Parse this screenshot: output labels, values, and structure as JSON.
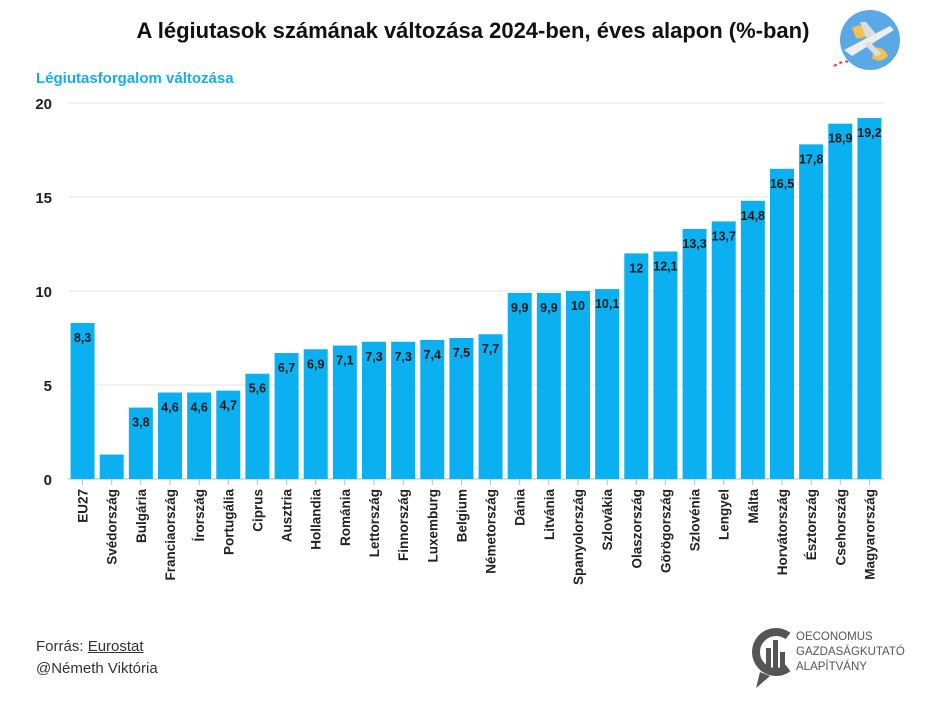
{
  "title": "A légiutasok számának változása 2024-ben, éves alapon (%-ban)",
  "source": {
    "label": "Forrás: ",
    "link": "Eurostat",
    "author": "@Németh Viktória"
  },
  "logo": {
    "line1": "OECONOMUS",
    "line2": "GAZDASÁGKUTATÓ",
    "line3": "ALAPÍTVÁNY"
  },
  "colors": {
    "bar": "#0ab0ef",
    "title_accent": "#16aee8",
    "grid": "#e6e6e6"
  },
  "chart_data": {
    "type": "bar",
    "title": "A légiutasok számának változása 2024-ben, éves alapon (%-ban)",
    "ylabel": "Légiutasforgalom változása",
    "ylim": [
      0,
      20
    ],
    "yticks": [
      0,
      5,
      10,
      15,
      20
    ],
    "grid": true,
    "categories": [
      "EU27",
      "Svédország",
      "Bulgária",
      "Franciaország",
      "Írország",
      "Portugália",
      "Ciprus",
      "Ausztria",
      "Hollandia",
      "Románia",
      "Lettország",
      "Finnország",
      "Luxemburg",
      "Belgium",
      "Németország",
      "Dánia",
      "Litvánia",
      "Spanyolország",
      "Szlovákia",
      "Olaszország",
      "Görögország",
      "Szlovénia",
      "Lengyel",
      "Málta",
      "Horvátország",
      "Észtország",
      "Csehország",
      "Magyarország"
    ],
    "values": [
      8.3,
      1.3,
      3.8,
      4.6,
      4.6,
      4.7,
      5.6,
      6.7,
      6.9,
      7.1,
      7.3,
      7.3,
      7.4,
      7.5,
      7.7,
      9.9,
      9.9,
      10,
      10.1,
      12,
      12.1,
      13.3,
      13.7,
      14.8,
      16.5,
      17.8,
      18.9,
      19.2
    ],
    "data_labels": [
      "8,3",
      "",
      "3,8",
      "4,6",
      "4,6",
      "4,7",
      "5,6",
      "6,7",
      "6,9",
      "7,1",
      "7,3",
      "7,3",
      "7,4",
      "7,5",
      "7,7",
      "9,9",
      "9,9",
      "10",
      "10,1",
      "12",
      "12,1",
      "13,3",
      "13,7",
      "14,8",
      "16,5",
      "17,8",
      "18,9",
      "19,2"
    ]
  }
}
